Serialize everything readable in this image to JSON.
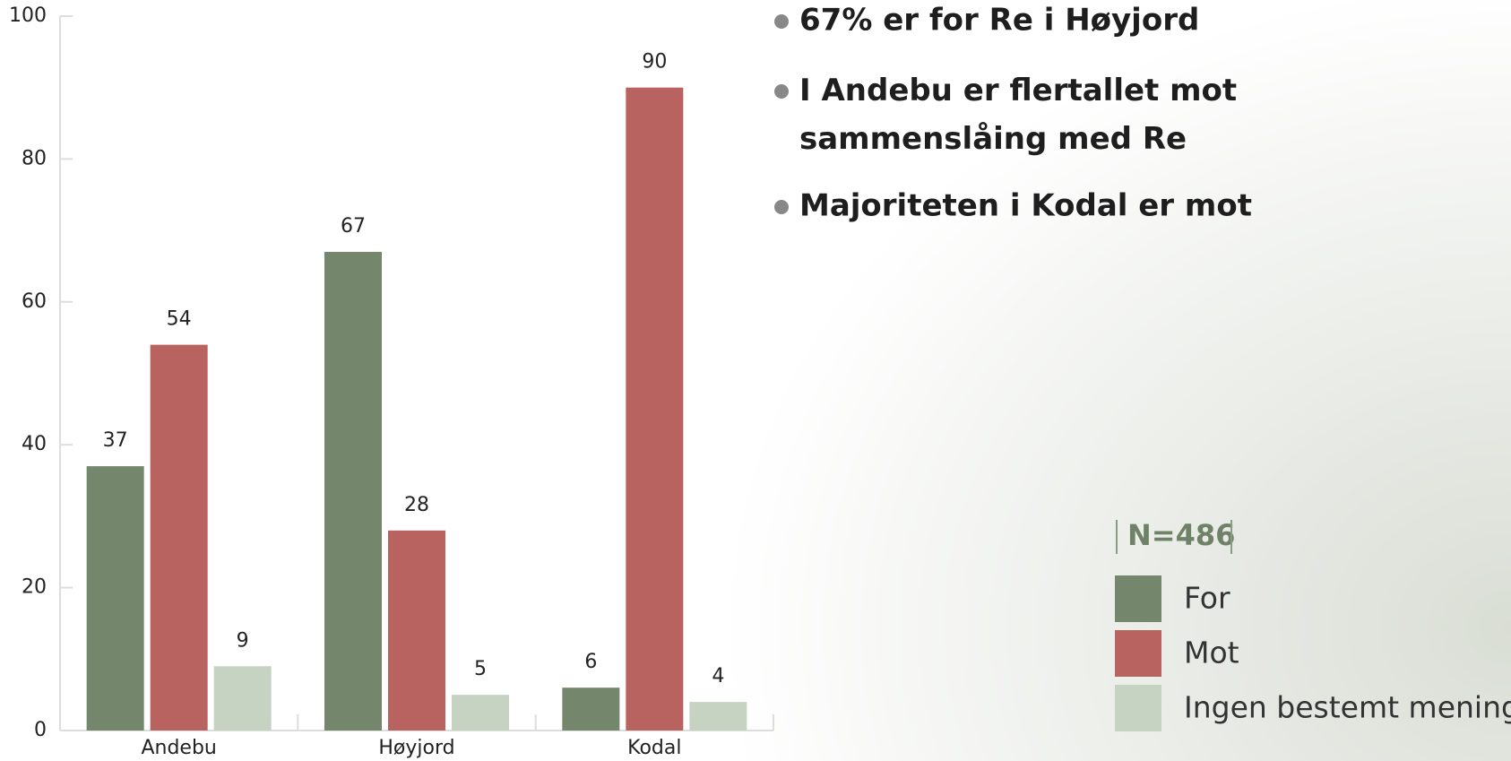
{
  "chart_data": {
    "type": "bar",
    "categories": [
      "Andebu",
      "Høyjord",
      "Kodal"
    ],
    "series": [
      {
        "name": "For",
        "color": "#74876d",
        "values": [
          37,
          67,
          6
        ]
      },
      {
        "name": "Mot",
        "color": "#b96361",
        "values": [
          54,
          28,
          90
        ]
      },
      {
        "name": "Ingen bestemt mening",
        "color": "#c6d3c3",
        "values": [
          9,
          5,
          4
        ]
      }
    ],
    "ylim": [
      0,
      100
    ],
    "yticks": [
      0,
      20,
      40,
      60,
      80,
      100
    ],
    "annotations": [
      "67% er for Re i Høyjord",
      "I Andebu er flertallet mot sammenslåing med Re",
      "Majoriteten i Kodal er mot"
    ],
    "note": "N=486"
  }
}
